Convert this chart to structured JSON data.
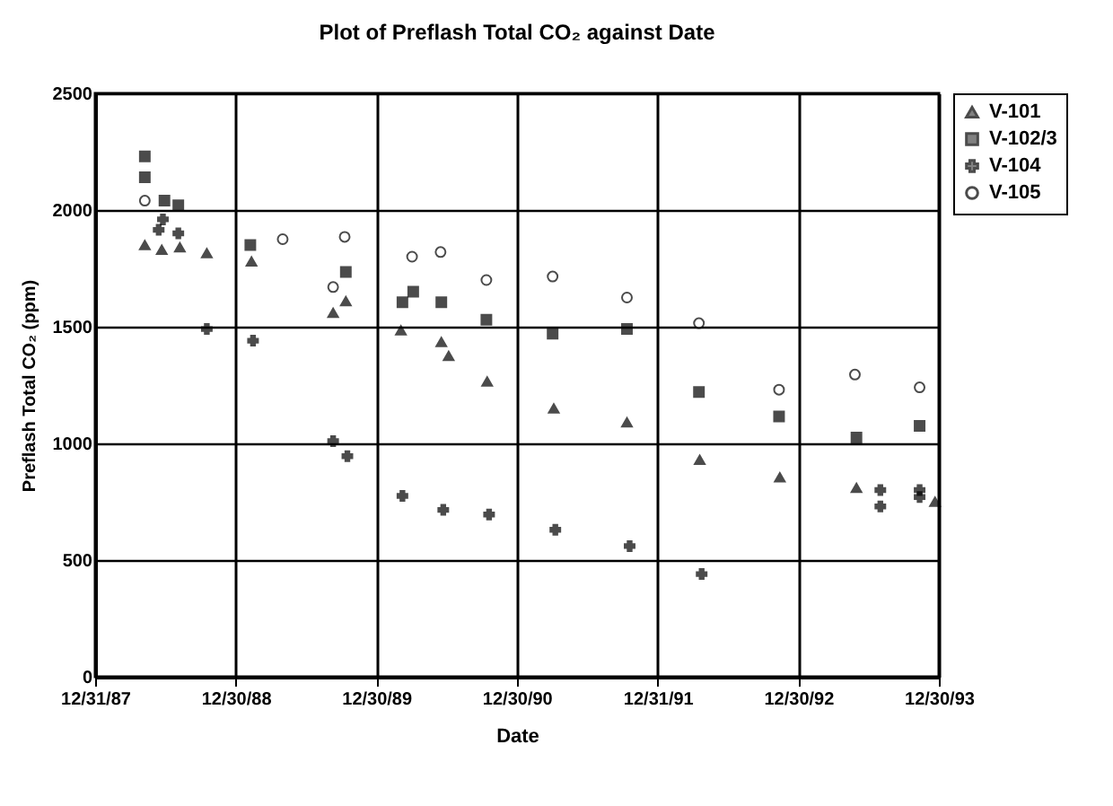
{
  "chart_data": {
    "type": "scatter",
    "title": "Plot of Preflash Total CO₂ against Date",
    "xlabel": "Date",
    "ylabel": "Preflash Total CO₂ (ppm)",
    "xlim": [
      "1987-12-31",
      "1993-12-30"
    ],
    "xticks": [
      {
        "value": "1987-12-31",
        "label": "12/31/87"
      },
      {
        "value": "1988-12-30",
        "label": "12/30/88"
      },
      {
        "value": "1989-12-30",
        "label": "12/30/89"
      },
      {
        "value": "1990-12-30",
        "label": "12/30/90"
      },
      {
        "value": "1991-12-31",
        "label": "12/31/91"
      },
      {
        "value": "1992-12-30",
        "label": "12/30/92"
      },
      {
        "value": "1993-12-30",
        "label": "12/30/93"
      }
    ],
    "ylim": [
      0,
      2500
    ],
    "yticks": [
      0,
      500,
      1000,
      1500,
      2000,
      2500
    ],
    "grid": true,
    "legend": "right",
    "series": [
      {
        "name": "V-101",
        "color": "#000000",
        "marker": "triangle",
        "x": [
          "1988-05-08",
          "1988-06-21",
          "1988-08-07",
          "1988-10-16",
          "1989-02-09",
          "1989-09-09",
          "1989-10-12",
          "1990-03-04",
          "1990-06-17",
          "1990-07-06",
          "1990-10-14",
          "1991-04-05",
          "1991-10-12",
          "1992-04-18",
          "1992-11-12",
          "1993-05-30",
          "1993-12-20"
        ],
        "values": [
          1850,
          1830,
          1840,
          1815,
          1780,
          1560,
          1610,
          1485,
          1435,
          1375,
          1265,
          1150,
          1090,
          930,
          855,
          810,
          750
        ]
      },
      {
        "name": "V-102/3",
        "color": "#000000",
        "marker": "square",
        "x": [
          "1988-05-08",
          "1988-05-08",
          "1988-06-28",
          "1988-08-03",
          "1989-02-06",
          "1989-10-12",
          "1990-03-08",
          "1990-04-05",
          "1990-06-17",
          "1990-10-12",
          "1991-04-02",
          "1991-10-12",
          "1992-04-16",
          "1992-11-10",
          "1993-05-30",
          "1993-11-10"
        ],
        "values": [
          2230,
          2140,
          2040,
          2020,
          1850,
          1735,
          1605,
          1650,
          1605,
          1530,
          1470,
          1490,
          1220,
          1115,
          1025,
          1075
        ]
      },
      {
        "name": "V-104",
        "color": "#000000",
        "marker": "cross",
        "x": [
          "1988-06-13",
          "1988-06-24",
          "1988-08-03",
          "1988-10-16",
          "1989-02-13",
          "1989-09-09",
          "1989-10-16",
          "1990-03-08",
          "1990-06-22",
          "1990-10-19",
          "1991-04-09",
          "1991-10-19",
          "1992-04-23",
          "1993-07-31",
          "1993-07-31",
          "1993-11-10",
          "1993-11-10"
        ],
        "values": [
          1915,
          1960,
          1900,
          1490,
          1440,
          1010,
          945,
          775,
          715,
          695,
          630,
          560,
          440,
          800,
          730,
          800,
          770
        ]
      },
      {
        "name": "V-105",
        "color": "#000000",
        "marker": "circle",
        "x": [
          "1988-05-08",
          "1989-05-01",
          "1989-09-09",
          "1989-10-09",
          "1990-04-02",
          "1990-06-15",
          "1990-10-12",
          "1991-04-02",
          "1991-10-12",
          "1992-04-16",
          "1992-11-10",
          "1993-05-26",
          "1993-11-10"
        ],
        "values": [
          2040,
          1875,
          1670,
          1885,
          1800,
          1820,
          1700,
          1715,
          1625,
          1515,
          1230,
          1295,
          1240
        ]
      }
    ]
  }
}
